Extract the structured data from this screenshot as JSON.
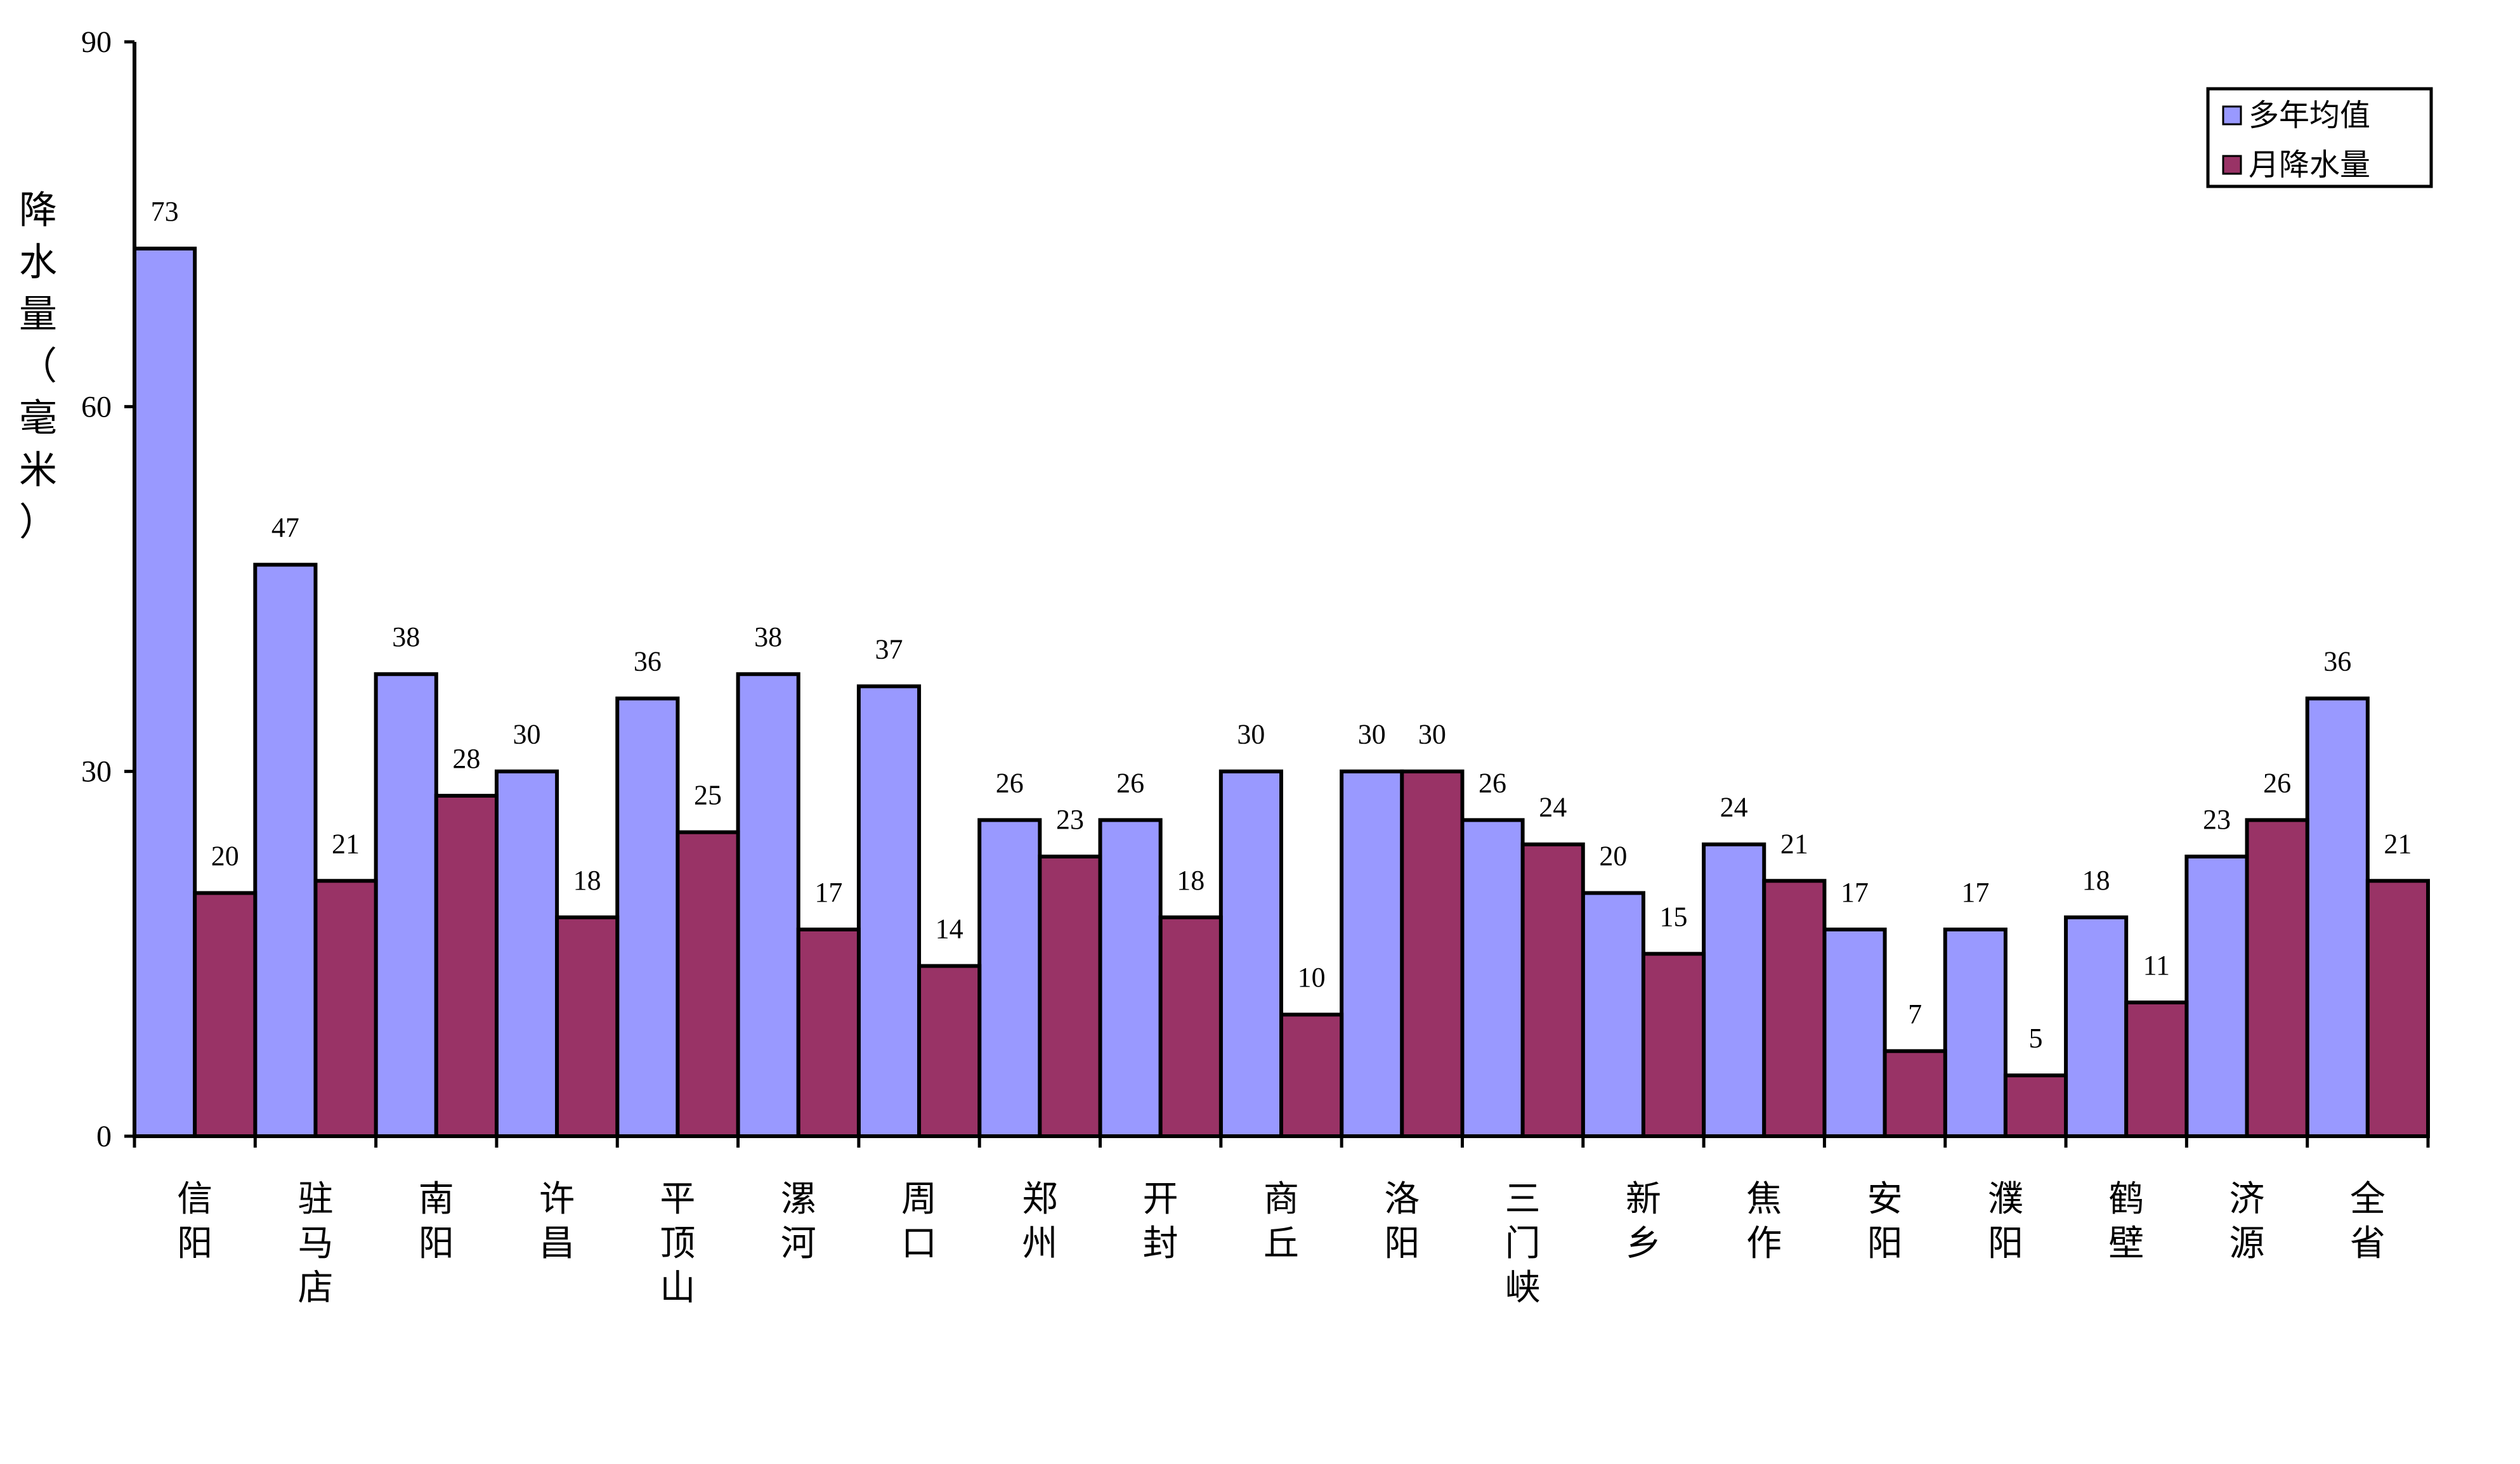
{
  "chart_data": {
    "type": "bar",
    "ylabel": "降水量（毫米）",
    "ylim": [
      0,
      90
    ],
    "yticks": [
      0,
      30,
      60,
      90
    ],
    "grid": false,
    "legend_position": "top-right",
    "categories": [
      "信阳",
      "驻马店",
      "南阳",
      "许昌",
      "平顶山",
      "漯河",
      "周口",
      "郑州",
      "开封",
      "商丘",
      "洛阳",
      "三门峡",
      "新乡",
      "焦作",
      "安阳",
      "濮阳",
      "鹤壁",
      "济源",
      "全省"
    ],
    "series": [
      {
        "name": "多年均值",
        "color": "#9999ff",
        "values": [
          73,
          47,
          38,
          30,
          36,
          38,
          37,
          26,
          26,
          30,
          30,
          26,
          20,
          24,
          17,
          17,
          18,
          23,
          36
        ]
      },
      {
        "name": "月降水量",
        "color": "#993366",
        "values": [
          20,
          21,
          28,
          18,
          25,
          17,
          14,
          23,
          18,
          10,
          30,
          24,
          15,
          21,
          7,
          5,
          11,
          26,
          21
        ]
      }
    ]
  }
}
